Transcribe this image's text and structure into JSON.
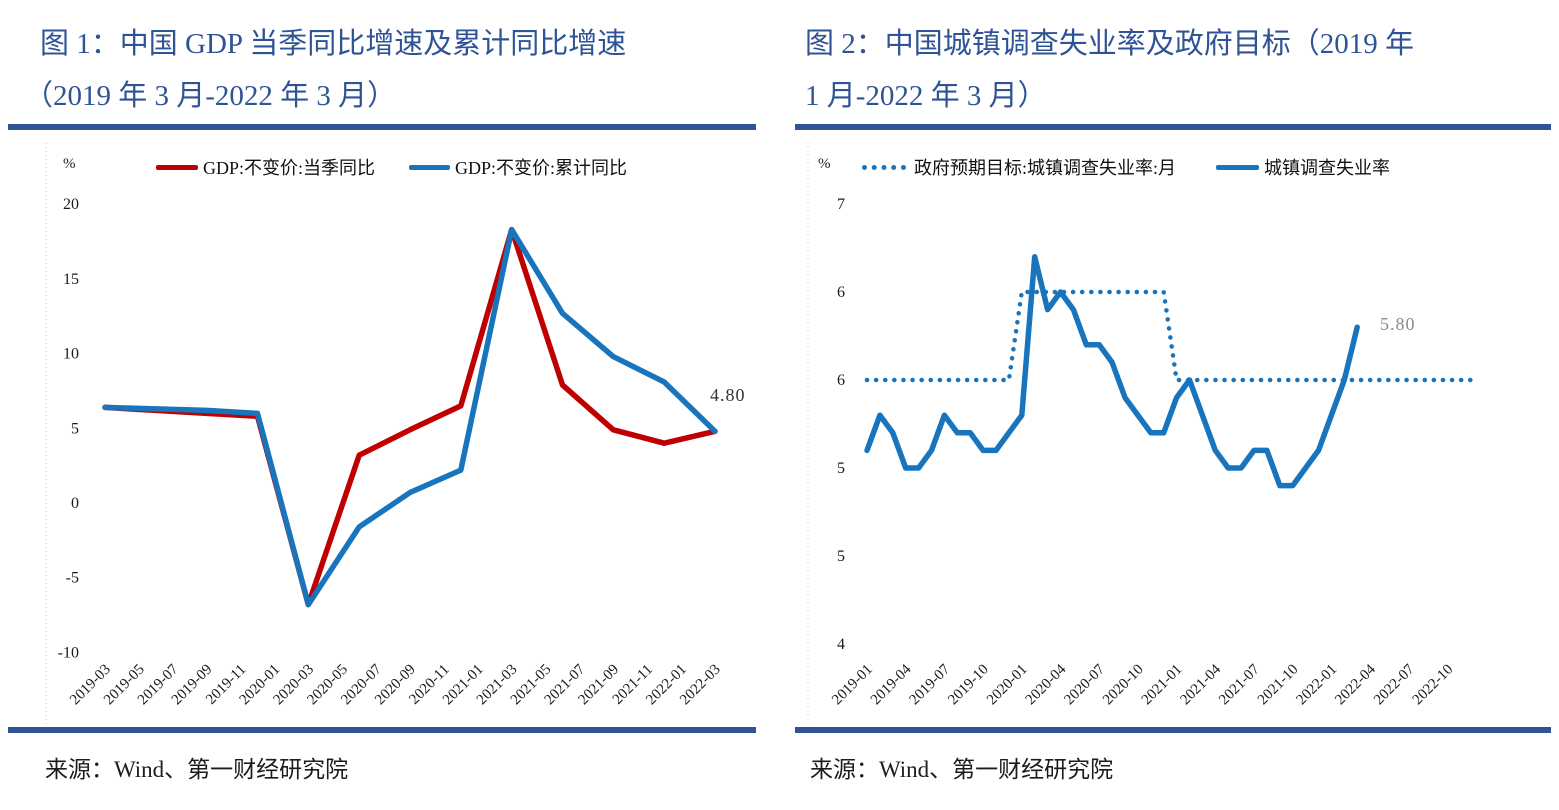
{
  "panels": [
    {
      "source": "来源：Wind、第一财经研究院"
    },
    {
      "source": "来源：Wind、第一财经研究院"
    }
  ],
  "chart_data": [
    {
      "type": "line",
      "title": "图 1：中国 GDP 当季同比增速及累计同比增速（2019 年 3 月-2022 年 3 月）",
      "title_lines": [
        "图 1：中国 GDP 当季同比增速及累计同比增速",
        "（2019 年 3 月-2022 年 3 月）"
      ],
      "unit": "%",
      "grid": false,
      "legend_position": "top",
      "ylim": [
        -10,
        20
      ],
      "y_axis": {
        "labels": [
          "20",
          "15",
          "10",
          "5",
          "0",
          "-5",
          "-10"
        ],
        "values": [
          20,
          15,
          10,
          5,
          0,
          -5,
          -10
        ]
      },
      "x_tick_labels": [
        "2019-03",
        "2019-05",
        "2019-07",
        "2019-09",
        "2019-11",
        "2020-01",
        "2020-03",
        "2020-05",
        "2020-07",
        "2020-09",
        "2020-11",
        "2021-01",
        "2021-03",
        "2021-05",
        "2021-07",
        "2021-09",
        "2021-11",
        "2022-01",
        "2022-03"
      ],
      "x": [
        "2019-03",
        "2019-06",
        "2019-09",
        "2019-12",
        "2020-03",
        "2020-06",
        "2020-09",
        "2020-12",
        "2021-03",
        "2021-06",
        "2021-09",
        "2021-12",
        "2022-03"
      ],
      "series": [
        {
          "name": "GDP:不变价:当季同比",
          "color": "#C00000",
          "style": "solid",
          "step_months": 3,
          "values": [
            6.4,
            6.2,
            6.0,
            5.8,
            -6.8,
            3.2,
            4.9,
            6.5,
            18.3,
            7.9,
            4.9,
            4.0,
            4.8
          ]
        },
        {
          "name": "GDP:不变价:累计同比",
          "color": "#1874BC",
          "style": "solid",
          "step_months": 3,
          "values": [
            6.4,
            6.3,
            6.2,
            6.0,
            -6.8,
            -1.6,
            0.7,
            2.2,
            18.3,
            12.7,
            9.8,
            8.1,
            4.8
          ]
        }
      ],
      "annotation": {
        "text": "4.80",
        "x": "2022-03",
        "value": 4.8
      }
    },
    {
      "type": "line",
      "title": "图 2：中国城镇调查失业率及政府目标（2019 年 1 月-2022 年 3 月）",
      "title_lines": [
        "图 2：中国城镇调查失业率及政府目标（2019 年",
        "1 月-2022 年 3 月）"
      ],
      "unit": "%",
      "grid": false,
      "legend_position": "top",
      "ylim": [
        4,
        6.5
      ],
      "y_axis": {
        "labels": [
          "7",
          "6",
          "6",
          "5",
          "5",
          "4"
        ],
        "values": [
          6.5,
          6.0,
          5.5,
          5.0,
          4.5,
          4.0
        ]
      },
      "x_tick_labels": [
        "2019-01",
        "2019-04",
        "2019-07",
        "2019-10",
        "2020-01",
        "2020-04",
        "2020-07",
        "2020-10",
        "2021-01",
        "2021-04",
        "2021-07",
        "2021-10",
        "2022-01",
        "2022-04",
        "2022-07",
        "2022-10"
      ],
      "series": [
        {
          "name": "政府预期目标:城镇调查失业率:月",
          "color": "#1874BC",
          "style": "dotted",
          "step_months": 1,
          "start": "2019-01",
          "values": [
            5.5,
            5.5,
            5.5,
            5.5,
            5.5,
            5.5,
            5.5,
            5.5,
            5.5,
            5.5,
            5.5,
            5.5,
            6.0,
            6.0,
            6.0,
            6.0,
            6.0,
            6.0,
            6.0,
            6.0,
            6.0,
            6.0,
            6.0,
            6.0,
            5.5,
            5.5,
            5.5,
            5.5,
            5.5,
            5.5,
            5.5,
            5.5,
            5.5,
            5.5,
            5.5,
            5.5,
            5.5,
            5.5,
            5.5,
            5.5,
            5.5,
            5.5,
            5.5,
            5.5,
            5.5,
            5.5,
            5.5,
            5.5
          ]
        },
        {
          "name": "城镇调查失业率",
          "color": "#1874BC",
          "style": "solid",
          "step_months": 1,
          "start": "2019-01",
          "values": [
            5.1,
            5.3,
            5.2,
            5.0,
            5.0,
            5.1,
            5.3,
            5.2,
            5.2,
            5.1,
            5.1,
            5.2,
            5.3,
            6.2,
            5.9,
            6.0,
            5.9,
            5.7,
            5.7,
            5.6,
            5.4,
            5.3,
            5.2,
            5.2,
            5.4,
            5.5,
            5.3,
            5.1,
            5.0,
            5.0,
            5.1,
            5.1,
            4.9,
            4.9,
            5.0,
            5.1,
            5.3,
            5.5,
            5.8
          ]
        }
      ],
      "annotation": {
        "text": "5.80",
        "x": "2022-03",
        "value": 5.8
      }
    }
  ]
}
